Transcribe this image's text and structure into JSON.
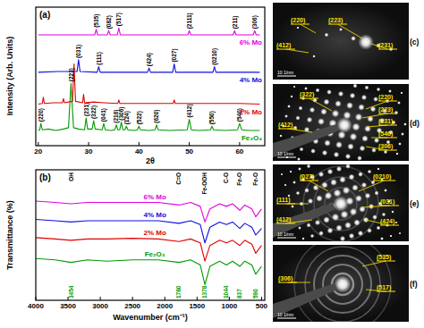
{
  "chart_data": [
    {
      "type": "line",
      "title": "(a)",
      "x_label": "2θ",
      "y_label": "Intensity (Arb. Units)",
      "xlim": [
        19.5,
        65
      ],
      "xticks": [
        20,
        30,
        40,
        50,
        60
      ],
      "ylim": [
        0,
        100
      ],
      "tick_labels": "x",
      "series": [
        {
          "name": "Fe₃O₄",
          "color": "#009a00",
          "x": [
            20,
            20.3,
            20.5,
            20.8,
            22,
            23.5,
            25,
            26,
            26.5,
            27,
            28,
            29.2,
            29.5,
            29.8,
            30.7,
            31,
            31.3,
            32.7,
            33,
            33.3,
            34.5,
            35.2,
            35.5,
            35.8,
            36.2,
            36.5,
            36.8,
            37.2,
            37.5,
            37.8,
            39,
            39.7,
            40,
            40.3,
            42,
            43.2,
            43.5,
            43.8,
            46,
            49.6,
            50,
            50.4,
            52,
            54.2,
            54.5,
            54.8,
            57,
            59.6,
            60,
            60.4,
            62,
            64
          ],
          "values": [
            11,
            11.5,
            16,
            11.5,
            12,
            11,
            12,
            13,
            45,
            13,
            12,
            11.5,
            20,
            12,
            12,
            18,
            12,
            11.5,
            16,
            11.5,
            11,
            11.5,
            15,
            11.5,
            11.5,
            17,
            11.5,
            11.5,
            14,
            11.5,
            11,
            11.5,
            14,
            11.5,
            11,
            11.5,
            15,
            11.5,
            11,
            11.5,
            19,
            11.5,
            11,
            11.5,
            14,
            11.5,
            11,
            11.5,
            16,
            11.5,
            11,
            11
          ],
          "annotations": [
            {
              "x": 20.5,
              "label": "(220)"
            },
            {
              "x": 26.5,
              "label": "(223)"
            },
            {
              "x": 29.5,
              "label": "(231)"
            },
            {
              "x": 31,
              "label": "(322)"
            },
            {
              "x": 33,
              "label": "(041)"
            },
            {
              "x": 35.5,
              "label": "(216)"
            },
            {
              "x": 36.5,
              "label": "(306)"
            },
            {
              "x": 37.5,
              "label": "(124)"
            },
            {
              "x": 40,
              "label": "(522)"
            },
            {
              "x": 43.5,
              "label": "(620)"
            },
            {
              "x": 50,
              "label": "(412)"
            },
            {
              "x": 54.5,
              "label": "(550)"
            },
            {
              "x": 60,
              "label": "(540)"
            }
          ]
        },
        {
          "name": "2% Mo",
          "color": "#e00000",
          "x": [
            20,
            20.8,
            21,
            21.2,
            23,
            24.8,
            25,
            25.2,
            26.8,
            27.1,
            27.4,
            28.8,
            29,
            29.2,
            31,
            33,
            35.8,
            36,
            36.2,
            40,
            43,
            46.8,
            47,
            47.2,
            50,
            55,
            60,
            64
          ],
          "values": [
            30,
            30.5,
            35,
            30.5,
            31,
            31,
            34,
            31,
            32,
            59,
            32,
            31,
            37,
            31,
            31.5,
            31,
            30.5,
            33,
            30.5,
            30.5,
            30.5,
            30.5,
            33,
            30.5,
            30.5,
            30.5,
            30.5,
            30
          ]
        },
        {
          "name": "4% Mo",
          "color": "#1010e0",
          "x": [
            20,
            24,
            27.7,
            28,
            28.3,
            31.7,
            32,
            32.3,
            38,
            41.7,
            42,
            42.3,
            46.7,
            47,
            47.3,
            54.7,
            55,
            55.3,
            60,
            64
          ],
          "values": [
            53,
            53.5,
            53.5,
            62,
            53.5,
            53,
            57,
            53,
            53,
            53,
            56,
            53,
            53,
            59,
            53,
            53,
            57,
            53,
            53,
            53
          ],
          "annotations": [
            {
              "x": 28,
              "label": "(031)"
            },
            {
              "x": 32,
              "label": "(111)"
            },
            {
              "x": 42,
              "label": "(424)"
            },
            {
              "x": 47,
              "label": "(027)"
            },
            {
              "x": 55,
              "label": "(0210)"
            }
          ]
        },
        {
          "name": "6% Mo",
          "color": "#e000e0",
          "x": [
            20,
            31.2,
            31.5,
            31.8,
            33.7,
            34,
            34.3,
            35.7,
            36,
            36.3,
            45,
            49.7,
            50,
            50.3,
            58.7,
            59,
            59.3,
            62.7,
            63,
            63.3,
            64
          ],
          "values": [
            80,
            80,
            84,
            80,
            80,
            83,
            80,
            80,
            85,
            80,
            80,
            80,
            83,
            80,
            80,
            83,
            80,
            80,
            83,
            80,
            80
          ],
          "annotations": [
            {
              "x": 31.5,
              "label": "(535)"
            },
            {
              "x": 34,
              "label": "(082)"
            },
            {
              "x": 36,
              "label": "(517)"
            },
            {
              "x": 50,
              "label": "(2111)"
            },
            {
              "x": 59,
              "label": "(211)"
            },
            {
              "x": 63,
              "label": "(306)"
            }
          ]
        }
      ]
    },
    {
      "type": "line",
      "title": "(b)",
      "x_label": "Wavenumber (cm⁻¹)",
      "y_label": "Transmittance (%)",
      "xlim": [
        4000,
        450
      ],
      "xticks": [
        4000,
        3500,
        3000,
        2500,
        2000,
        1500,
        1000,
        500
      ],
      "ylim": [
        0,
        100
      ],
      "tick_labels": "x",
      "series": [
        {
          "name": "Fe₂O₃",
          "color": "#009a00",
          "x": [
            4000,
            3700,
            3454,
            3200,
            2900,
            2500,
            2100,
            1780,
            1600,
            1450,
            1378,
            1300,
            1150,
            1044,
            950,
            837,
            760,
            650,
            590,
            500
          ],
          "values": [
            32,
            31,
            29,
            31,
            30,
            31,
            31,
            29,
            31,
            27,
            12,
            26,
            30,
            27,
            30,
            26,
            30,
            27,
            20,
            26
          ]
        },
        {
          "name": "2% Mo",
          "color": "#e00000",
          "x": [
            4000,
            3700,
            3454,
            3200,
            2900,
            2500,
            2100,
            1780,
            1600,
            1450,
            1378,
            1300,
            1150,
            1044,
            950,
            837,
            760,
            650,
            590,
            500
          ],
          "values": [
            48,
            47,
            46,
            47,
            47,
            47.5,
            47,
            45,
            47,
            44,
            30,
            42,
            46,
            44,
            46,
            42,
            46,
            43,
            36,
            42
          ]
        },
        {
          "name": "4% Mo",
          "color": "#1010e0",
          "x": [
            4000,
            3700,
            3454,
            3200,
            2900,
            2500,
            2100,
            1780,
            1600,
            1450,
            1378,
            1300,
            1150,
            1044,
            950,
            837,
            760,
            650,
            590,
            500
          ],
          "values": [
            62,
            61,
            60,
            61,
            61,
            61,
            61,
            59,
            61,
            58,
            44,
            56,
            60,
            58,
            60,
            55,
            59,
            56,
            50,
            55
          ]
        },
        {
          "name": "6% Mo",
          "color": "#e000e0",
          "x": [
            4000,
            3700,
            3454,
            3200,
            2900,
            2500,
            2100,
            1780,
            1600,
            1450,
            1378,
            1300,
            1150,
            1044,
            950,
            837,
            760,
            650,
            590,
            500
          ],
          "values": [
            76,
            75,
            74,
            75,
            75,
            75,
            75,
            73,
            75,
            72,
            60,
            70,
            74,
            72,
            74,
            69,
            73,
            70,
            64,
            70
          ]
        }
      ],
      "annotations": [
        {
          "x": 3454,
          "label": "OH"
        },
        {
          "x": 1780,
          "label": "C=O"
        },
        {
          "x": 1378,
          "label": "Fe-OOH"
        },
        {
          "x": 1044,
          "label": "C-O"
        },
        {
          "x": 837,
          "label": "Fe-O"
        },
        {
          "x": 590,
          "label": "Fe-O"
        }
      ]
    }
  ],
  "saed_patterns": [
    {
      "title": "(c)",
      "labels": [
        "(220)",
        "(223)",
        "(231)",
        "(412)"
      ],
      "scale_bar": "10 1/nm"
    },
    {
      "title": "(d)",
      "labels": [
        "(322)",
        "(412)",
        "(220)",
        "(223)",
        "(231)",
        "(546)",
        "(306)"
      ],
      "scale_bar": "10 1/nm"
    },
    {
      "title": "(e)",
      "labels": [
        "(027)",
        "(0210)",
        "(111)",
        "(031)",
        "(412)",
        "(424)"
      ],
      "scale_bar": "10 1/nm"
    },
    {
      "title": "(f)",
      "labels": [
        "(535)",
        "(517)",
        "(306)"
      ],
      "scale_bar": "10 1/nm"
    }
  ]
}
